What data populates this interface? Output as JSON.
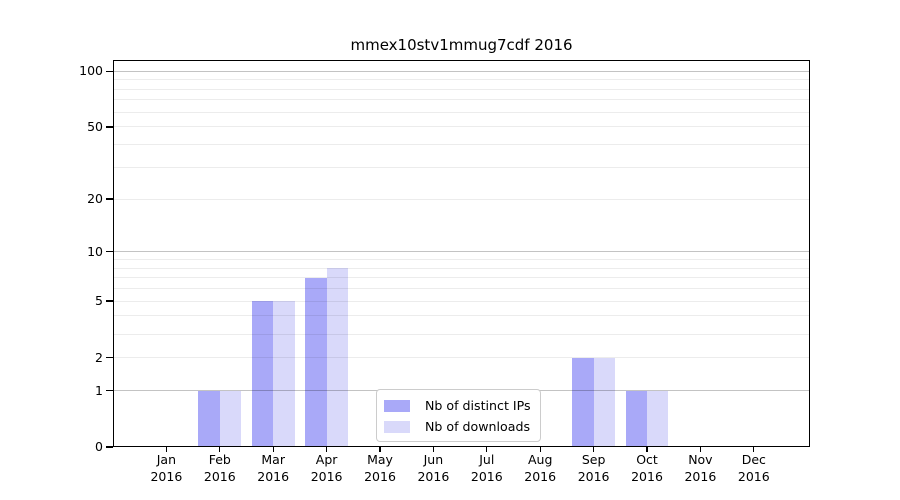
{
  "chart_data": {
    "type": "bar",
    "title": "mmex10stv1mmug7cdf 2016",
    "xlabel": "",
    "ylabel": "",
    "scale": "log1p",
    "categories": [
      "Jan",
      "Feb",
      "Mar",
      "Apr",
      "May",
      "Jun",
      "Jul",
      "Aug",
      "Sep",
      "Oct",
      "Nov",
      "Dec"
    ],
    "year": "2016",
    "series": [
      {
        "name": "Nb of distinct IPs",
        "color": "#a9a9f8",
        "values": [
          0,
          1,
          5,
          7,
          0,
          0,
          0,
          0,
          2,
          1,
          0,
          0
        ]
      },
      {
        "name": "Nb of downloads",
        "color": "#d9d9fa",
        "values": [
          0,
          1,
          5,
          8,
          0,
          0,
          0,
          0,
          2,
          1,
          0,
          0
        ]
      }
    ],
    "yticks": [
      0,
      1,
      2,
      5,
      10,
      20,
      50,
      100
    ],
    "minor_gridlines": [
      2,
      3,
      4,
      5,
      6,
      7,
      8,
      9,
      20,
      30,
      40,
      50,
      60,
      70,
      80,
      90
    ],
    "major_gridlines": [
      1,
      10,
      100
    ],
    "ylim": [
      0,
      115
    ],
    "grid": "on",
    "legend_position": "lower-center"
  },
  "colors": {
    "background": "#ffffff",
    "spine": "#000000",
    "grid_minor": "#ebebeb",
    "grid_major": "#c4c4c4"
  }
}
